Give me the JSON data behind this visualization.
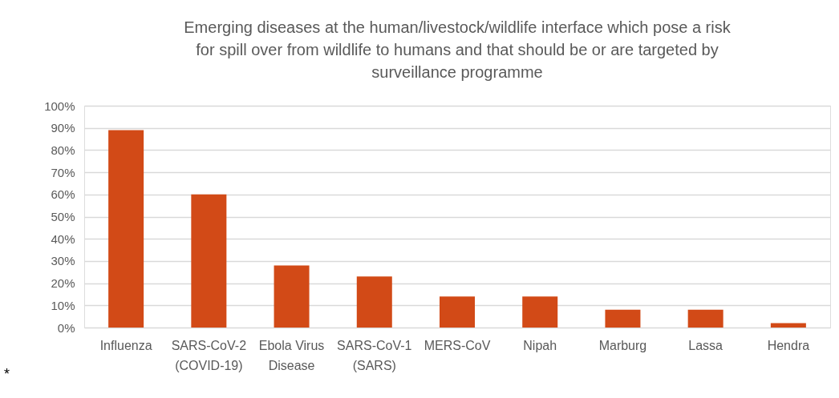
{
  "chart_data": {
    "type": "bar",
    "title": "Emerging diseases at the human/livestock/wildlife interface which pose a risk\nfor spill over from wildlife to humans and that should be or are targeted by\nsurveillance programme",
    "categories": [
      "Influenza",
      "SARS-CoV-2\n(COVID-19)",
      "Ebola Virus\nDisease",
      "SARS-CoV-1\n(SARS)",
      "MERS-CoV",
      "Nipah",
      "Marburg",
      "Lassa",
      "Hendra"
    ],
    "values": [
      89,
      60,
      28,
      23,
      14,
      14,
      8,
      8,
      2
    ],
    "color": "#d24a17",
    "ylim": [
      0,
      100
    ],
    "yticks": [
      {
        "value": 0,
        "label": "0%"
      },
      {
        "value": 10,
        "label": "10%"
      },
      {
        "value": 20,
        "label": "20%"
      },
      {
        "value": 30,
        "label": "30%"
      },
      {
        "value": 40,
        "label": "40%"
      },
      {
        "value": 50,
        "label": "50%"
      },
      {
        "value": 60,
        "label": "60%"
      },
      {
        "value": 70,
        "label": "70%"
      },
      {
        "value": 80,
        "label": "80%"
      },
      {
        "value": 90,
        "label": "90%"
      },
      {
        "value": 100,
        "label": "100%"
      }
    ],
    "grid": "y",
    "annotations": [
      "*"
    ]
  }
}
